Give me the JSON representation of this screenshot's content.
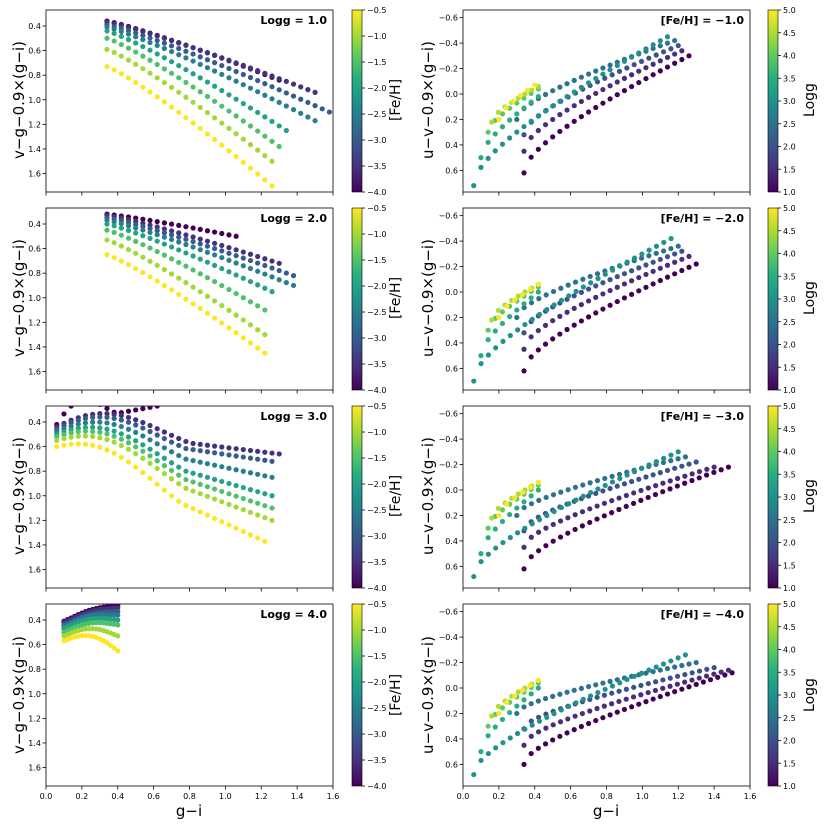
{
  "figure": {
    "x_label": "g−i",
    "left_y_label": "v−g−0.9×(g−i)",
    "right_y_label": "u−v−0.9×(g−i)",
    "left_colorbar_label": "[Fe/H]",
    "right_colorbar_label": "Logg",
    "x_ticks": [
      "0.0",
      "0.2",
      "0.4",
      "0.6",
      "0.8",
      "1.0",
      "1.2",
      "1.4",
      "1.6"
    ],
    "left_y_ticks": [
      "0.4",
      "0.6",
      "0.8",
      "1.0",
      "1.2",
      "1.4",
      "1.6"
    ],
    "right_y_ticks": [
      "−0.6",
      "−0.4",
      "−0.2",
      "0.0",
      "0.2",
      "0.4",
      "0.6"
    ],
    "feh_colorbar_ticks": [
      "−0.5",
      "−1.0",
      "−1.5",
      "−2.0",
      "−2.5",
      "−3.0",
      "−3.5",
      "−4.0"
    ],
    "logg_colorbar_ticks": [
      "5.0",
      "4.5",
      "4.0",
      "3.5",
      "3.0",
      "2.5",
      "2.0",
      "1.5",
      "1.0"
    ]
  },
  "chart_data": [
    {
      "type": "scatter",
      "title": "Logg = 1.0",
      "xlabel": "g−i",
      "ylabel": "v−g−0.9×(g−i)",
      "xlim": [
        0.0,
        1.6
      ],
      "ylim": [
        1.75,
        0.27
      ],
      "color_by": "[Fe/H]",
      "clim": [
        -4.0,
        -0.5
      ],
      "x_points": [
        0.34,
        0.38,
        0.42,
        0.46,
        0.5,
        0.54,
        0.58,
        0.62,
        0.66,
        0.7,
        0.74,
        0.78,
        0.82,
        0.86,
        0.9,
        0.94,
        0.98,
        1.02,
        1.06,
        1.1,
        1.14,
        1.18,
        1.22,
        1.26,
        1.3,
        1.34,
        1.38,
        1.42,
        1.46,
        1.5,
        1.54,
        1.58
      ],
      "series": [
        {
          "feh": -4.0,
          "x_end": 1.32,
          "y_start": 0.36,
          "y_end": 0.84
        },
        {
          "feh": -3.5,
          "x_end": 1.5,
          "y_start": 0.37,
          "y_end": 0.94
        },
        {
          "feh": -3.0,
          "x_end": 1.58,
          "y_start": 0.39,
          "y_end": 1.1
        },
        {
          "feh": -2.5,
          "x_end": 1.5,
          "y_start": 0.41,
          "y_end": 1.17
        },
        {
          "feh": -2.0,
          "x_end": 1.36,
          "y_start": 0.44,
          "y_end": 1.25
        },
        {
          "feh": -1.5,
          "x_end": 1.3,
          "y_start": 0.5,
          "y_end": 1.38
        },
        {
          "feh": -1.0,
          "x_end": 1.26,
          "y_start": 0.59,
          "y_end": 1.5
        },
        {
          "feh": -0.5,
          "x_end": 1.28,
          "y_start": 0.73,
          "y_end": 1.7
        }
      ]
    },
    {
      "type": "scatter",
      "title": "Logg = 2.0",
      "xlabel": "g−i",
      "ylabel": "v−g−0.9×(g−i)",
      "xlim": [
        0.0,
        1.6
      ],
      "ylim": [
        1.75,
        0.27
      ],
      "color_by": "[Fe/H]",
      "clim": [
        -4.0,
        -0.5
      ],
      "x_points": [
        0.34,
        0.38,
        0.42,
        0.46,
        0.5,
        0.54,
        0.58,
        0.62,
        0.66,
        0.7,
        0.74,
        0.78,
        0.82,
        0.86,
        0.9,
        0.94,
        0.98,
        1.02,
        1.06,
        1.1,
        1.14,
        1.18,
        1.22,
        1.26,
        1.3,
        1.34,
        1.38,
        1.42,
        1.46,
        1.5,
        1.54,
        1.58
      ],
      "series": [
        {
          "feh": -4.0,
          "x_end": 1.06,
          "y_start": 0.32,
          "y_end": 0.5
        },
        {
          "feh": -3.5,
          "x_end": 1.3,
          "y_start": 0.33,
          "y_end": 0.72
        },
        {
          "feh": -3.0,
          "x_end": 1.4,
          "y_start": 0.35,
          "y_end": 0.82
        },
        {
          "feh": -2.5,
          "x_end": 1.38,
          "y_start": 0.37,
          "y_end": 0.9
        },
        {
          "feh": -2.0,
          "x_end": 1.26,
          "y_start": 0.4,
          "y_end": 0.95
        },
        {
          "feh": -1.5,
          "x_end": 1.22,
          "y_start": 0.45,
          "y_end": 1.1
        },
        {
          "feh": -1.0,
          "x_end": 1.22,
          "y_start": 0.53,
          "y_end": 1.3
        },
        {
          "feh": -0.5,
          "x_end": 1.22,
          "y_start": 0.65,
          "y_end": 1.45
        }
      ]
    },
    {
      "type": "scatter",
      "title": "Logg = 3.0",
      "xlabel": "g−i",
      "ylabel": "v−g−0.9×(g−i)",
      "xlim": [
        0.0,
        1.6
      ],
      "ylim": [
        1.75,
        0.27
      ],
      "color_by": "[Fe/H]",
      "clim": [
        -4.0,
        -0.5
      ],
      "x_points": [
        0.06,
        0.1,
        0.14,
        0.18,
        0.22,
        0.26,
        0.3,
        0.34,
        0.38,
        0.42,
        0.46,
        0.5,
        0.54,
        0.58,
        0.62,
        0.66,
        0.7,
        0.74,
        0.78,
        0.82,
        0.86,
        0.9,
        0.94,
        0.98,
        1.02,
        1.06,
        1.1,
        1.14,
        1.18,
        1.22,
        1.26,
        1.3
      ],
      "series": [
        {
          "feh": -4.0,
          "x_end": 0.62,
          "y_start": 0.42,
          "y_end": 0.27
        },
        {
          "feh": -3.5,
          "x_end": 1.3,
          "y_start": 0.44,
          "y_end": 0.66
        },
        {
          "feh": -3.0,
          "x_end": 1.26,
          "y_start": 0.46,
          "y_end": 0.72
        },
        {
          "feh": -2.5,
          "x_end": 1.26,
          "y_start": 0.48,
          "y_end": 0.85
        },
        {
          "feh": -2.0,
          "x_end": 1.26,
          "y_start": 0.5,
          "y_end": 1.0
        },
        {
          "feh": -1.5,
          "x_end": 1.26,
          "y_start": 0.52,
          "y_end": 1.1
        },
        {
          "feh": -1.0,
          "x_end": 1.26,
          "y_start": 0.55,
          "y_end": 1.2
        },
        {
          "feh": -0.5,
          "x_end": 1.22,
          "y_start": 0.6,
          "y_end": 1.37
        }
      ]
    },
    {
      "type": "scatter",
      "title": "Logg = 4.0",
      "xlabel": "g−i",
      "ylabel": "v−g−0.9×(g−i)",
      "xlim": [
        0.0,
        1.6
      ],
      "ylim": [
        1.75,
        0.27
      ],
      "color_by": "[Fe/H]",
      "clim": [
        -4.0,
        -0.5
      ],
      "x_points": [
        0.1,
        0.12,
        0.14,
        0.16,
        0.18,
        0.2,
        0.22,
        0.24,
        0.26,
        0.28,
        0.3,
        0.32,
        0.34,
        0.36,
        0.38,
        0.4
      ],
      "series": [
        {
          "feh": -4.0,
          "x_end": 0.4,
          "y_start": 0.41,
          "y_end": 0.28
        },
        {
          "feh": -3.5,
          "x_end": 0.4,
          "y_start": 0.42,
          "y_end": 0.3
        },
        {
          "feh": -3.0,
          "x_end": 0.4,
          "y_start": 0.44,
          "y_end": 0.33
        },
        {
          "feh": -2.5,
          "x_end": 0.4,
          "y_start": 0.45,
          "y_end": 0.36
        },
        {
          "feh": -2.0,
          "x_end": 0.4,
          "y_start": 0.47,
          "y_end": 0.4
        },
        {
          "feh": -1.5,
          "x_end": 0.4,
          "y_start": 0.5,
          "y_end": 0.44
        },
        {
          "feh": -1.0,
          "x_end": 0.4,
          "y_start": 0.53,
          "y_end": 0.53
        },
        {
          "feh": -0.5,
          "x_end": 0.4,
          "y_start": 0.57,
          "y_end": 0.65
        }
      ]
    },
    {
      "type": "scatter",
      "title": "[Fe/H] = −1.0",
      "xlabel": "g−i",
      "ylabel": "u−v−0.9×(g−i)",
      "xlim": [
        0.0,
        1.6
      ],
      "ylim": [
        0.77,
        -0.66
      ],
      "color_by": "Logg",
      "clim": [
        1.0,
        5.0
      ],
      "series": [
        {
          "logg": 1.0,
          "x_start": 0.34,
          "x_end": 1.26,
          "y_start": 0.62,
          "y_end": -0.3
        },
        {
          "logg": 1.5,
          "x_start": 0.34,
          "x_end": 1.22,
          "y_start": 0.45,
          "y_end": -0.34
        },
        {
          "logg": 2.0,
          "x_start": 0.34,
          "x_end": 1.2,
          "y_start": 0.32,
          "y_end": -0.38
        },
        {
          "logg": 2.5,
          "x_start": 0.3,
          "x_end": 1.18,
          "y_start": 0.2,
          "y_end": -0.42
        },
        {
          "logg": 3.0,
          "x_start": 0.06,
          "x_end": 1.14,
          "y_start": 0.72,
          "y_end": -0.45
        },
        {
          "logg": 3.5,
          "x_start": 0.1,
          "x_end": 0.42,
          "y_start": 0.5,
          "y_end": 0.02
        },
        {
          "logg": 4.0,
          "x_start": 0.14,
          "x_end": 0.42,
          "y_start": 0.3,
          "y_end": -0.04
        },
        {
          "logg": 4.5,
          "x_start": 0.16,
          "x_end": 0.42,
          "y_start": 0.22,
          "y_end": -0.06
        },
        {
          "logg": 5.0,
          "x_start": 0.2,
          "x_end": 0.4,
          "y_start": 0.2,
          "y_end": -0.07
        }
      ]
    },
    {
      "type": "scatter",
      "title": "[Fe/H] = −2.0",
      "xlabel": "g−i",
      "ylabel": "u−v−0.9×(g−i)",
      "xlim": [
        0.0,
        1.6
      ],
      "ylim": [
        0.77,
        -0.66
      ],
      "color_by": "Logg",
      "clim": [
        1.0,
        5.0
      ],
      "series": [
        {
          "logg": 1.0,
          "x_start": 0.34,
          "x_end": 1.3,
          "y_start": 0.62,
          "y_end": -0.22
        },
        {
          "logg": 1.5,
          "x_start": 0.34,
          "x_end": 1.26,
          "y_start": 0.45,
          "y_end": -0.28
        },
        {
          "logg": 2.0,
          "x_start": 0.34,
          "x_end": 1.22,
          "y_start": 0.32,
          "y_end": -0.32
        },
        {
          "logg": 2.5,
          "x_start": 0.3,
          "x_end": 1.2,
          "y_start": 0.2,
          "y_end": -0.36
        },
        {
          "logg": 3.0,
          "x_start": 0.06,
          "x_end": 1.16,
          "y_start": 0.7,
          "y_end": -0.42
        },
        {
          "logg": 3.5,
          "x_start": 0.1,
          "x_end": 0.42,
          "y_start": 0.5,
          "y_end": 0.0
        },
        {
          "logg": 4.0,
          "x_start": 0.14,
          "x_end": 0.42,
          "y_start": 0.3,
          "y_end": -0.04
        },
        {
          "logg": 4.5,
          "x_start": 0.16,
          "x_end": 0.42,
          "y_start": 0.22,
          "y_end": -0.06
        },
        {
          "logg": 5.0,
          "x_start": 0.2,
          "x_end": 0.42,
          "y_start": 0.2,
          "y_end": -0.06
        }
      ]
    },
    {
      "type": "scatter",
      "title": "[Fe/H] = −3.0",
      "xlabel": "g−i",
      "ylabel": "u−v−0.9×(g−i)",
      "xlim": [
        0.0,
        1.6
      ],
      "ylim": [
        0.77,
        -0.66
      ],
      "color_by": "Logg",
      "clim": [
        1.0,
        5.0
      ],
      "series": [
        {
          "logg": 1.0,
          "x_start": 0.34,
          "x_end": 1.48,
          "y_start": 0.62,
          "y_end": -0.18
        },
        {
          "logg": 1.5,
          "x_start": 0.34,
          "x_end": 1.4,
          "y_start": 0.45,
          "y_end": -0.18
        },
        {
          "logg": 2.0,
          "x_start": 0.34,
          "x_end": 1.3,
          "y_start": 0.32,
          "y_end": -0.22
        },
        {
          "logg": 2.5,
          "x_start": 0.3,
          "x_end": 1.24,
          "y_start": 0.2,
          "y_end": -0.26
        },
        {
          "logg": 3.0,
          "x_start": 0.06,
          "x_end": 1.2,
          "y_start": 0.68,
          "y_end": -0.3
        },
        {
          "logg": 3.5,
          "x_start": 0.1,
          "x_end": 0.42,
          "y_start": 0.5,
          "y_end": 0.0
        },
        {
          "logg": 4.0,
          "x_start": 0.14,
          "x_end": 0.42,
          "y_start": 0.3,
          "y_end": -0.04
        },
        {
          "logg": 4.5,
          "x_start": 0.16,
          "x_end": 0.42,
          "y_start": 0.22,
          "y_end": -0.06
        },
        {
          "logg": 5.0,
          "x_start": 0.2,
          "x_end": 0.42,
          "y_start": 0.2,
          "y_end": -0.06
        }
      ]
    },
    {
      "type": "scatter",
      "title": "[Fe/H] = −4.0",
      "xlabel": "g−i",
      "ylabel": "u−v−0.9×(g−i)",
      "xlim": [
        0.0,
        1.6
      ],
      "ylim": [
        0.77,
        -0.66
      ],
      "color_by": "Logg",
      "clim": [
        1.0,
        5.0
      ],
      "series": [
        {
          "logg": 1.0,
          "x_start": 0.34,
          "x_end": 1.5,
          "y_start": 0.6,
          "y_end": -0.12
        },
        {
          "logg": 1.5,
          "x_start": 0.34,
          "x_end": 1.48,
          "y_start": 0.45,
          "y_end": -0.14
        },
        {
          "logg": 2.0,
          "x_start": 0.34,
          "x_end": 1.4,
          "y_start": 0.32,
          "y_end": -0.16
        },
        {
          "logg": 2.5,
          "x_start": 0.3,
          "x_end": 1.3,
          "y_start": 0.2,
          "y_end": -0.2
        },
        {
          "logg": 3.0,
          "x_start": 0.06,
          "x_end": 1.24,
          "y_start": 0.68,
          "y_end": -0.26
        },
        {
          "logg": 3.5,
          "x_start": 0.1,
          "x_end": 0.42,
          "y_start": 0.5,
          "y_end": 0.0
        },
        {
          "logg": 4.0,
          "x_start": 0.14,
          "x_end": 0.42,
          "y_start": 0.3,
          "y_end": -0.04
        },
        {
          "logg": 4.5,
          "x_start": 0.16,
          "x_end": 0.42,
          "y_start": 0.22,
          "y_end": -0.06
        },
        {
          "logg": 5.0,
          "x_start": 0.2,
          "x_end": 0.42,
          "y_start": 0.2,
          "y_end": -0.06
        }
      ]
    }
  ]
}
